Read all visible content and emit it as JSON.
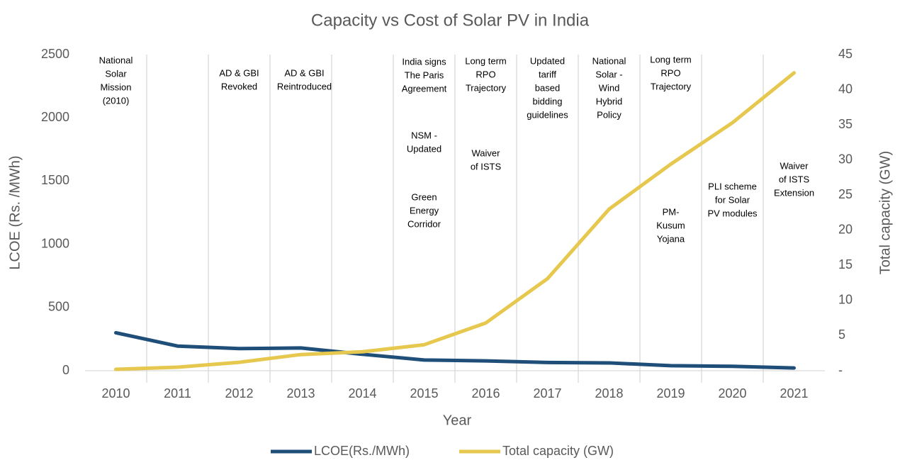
{
  "chart_data": {
    "type": "line",
    "title": "Capacity vs Cost of Solar PV in India",
    "x_label": "Year",
    "y_label": "LCOE (Rs. /MWh)",
    "y2_label": "Total capacity (GW)",
    "categories": [
      "2010",
      "2011",
      "2012",
      "2013",
      "2014",
      "2015",
      "2016",
      "2017",
      "2018",
      "2019",
      "2020",
      "2021"
    ],
    "series": [
      {
        "name": "LCOE(Rs./MWh)",
        "color": "#1f4e79",
        "values": [
          300,
          195,
          175,
          180,
          130,
          85,
          78,
          65,
          62,
          40,
          35,
          22
        ]
      },
      {
        "name": "Total capacity (GW)",
        "color": "#e6c84f",
        "axis": "y2",
        "values": [
          0.2,
          0.5,
          1.2,
          2.3,
          2.7,
          3.7,
          6.8,
          13.1,
          23,
          29.4,
          35.3,
          42.4
        ]
      }
    ],
    "ylim": [
      0,
      2500
    ],
    "yticks": [
      0,
      500,
      1000,
      1500,
      2000,
      2500
    ],
    "y2lim": [
      0,
      45
    ],
    "y2ticks": [
      {
        "value": 0,
        "label": "-"
      },
      5,
      10,
      15,
      20,
      25,
      30,
      35,
      40,
      45
    ],
    "legend": "bottom",
    "annotations": [
      {
        "year": "2010",
        "lines": [
          "National",
          "Solar",
          "Mission",
          "(2010)"
        ]
      },
      {
        "year": "2012",
        "lines": [
          "AD & GBI",
          "Revoked"
        ]
      },
      {
        "year": "2013",
        "lines": [
          "AD & GBI",
          "Reintroduced"
        ]
      },
      {
        "year": "2015",
        "lines": [
          "India signs",
          "The Paris",
          "Agreement"
        ]
      },
      {
        "year": "2015",
        "lines": [
          "NSM -",
          "Updated"
        ]
      },
      {
        "year": "2015",
        "lines": [
          "Green",
          "Energy",
          "Corridor"
        ]
      },
      {
        "year": "2016",
        "lines": [
          "Long term",
          "RPO",
          "Trajectory"
        ]
      },
      {
        "year": "2016",
        "lines": [
          "Waiver",
          "of ISTS"
        ]
      },
      {
        "year": "2017",
        "lines": [
          "Updated",
          "tariff",
          "based",
          "bidding",
          "guidelines"
        ]
      },
      {
        "year": "2018",
        "lines": [
          "National",
          "Solar -",
          "Wind",
          "Hybrid",
          "Policy"
        ]
      },
      {
        "year": "2019",
        "lines": [
          "Long term",
          "RPO",
          "Trajectory"
        ]
      },
      {
        "year": "2019",
        "lines": [
          "PM-",
          "Kusum",
          "Yojana"
        ]
      },
      {
        "year": "2020",
        "lines": [
          "PLI scheme",
          "for Solar",
          "PV modules"
        ]
      },
      {
        "year": "2021",
        "lines": [
          "Waiver",
          "of ISTS",
          "Extension"
        ]
      }
    ]
  }
}
